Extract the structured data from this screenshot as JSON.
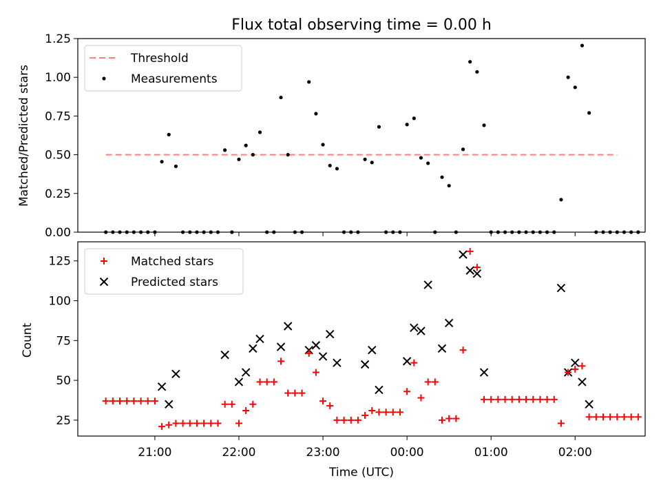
{
  "chart_data": [
    {
      "type": "scatter",
      "title": "Flux total observing time = 0.00 h",
      "xlabel": "",
      "ylabel": "Matched/Predicted stars",
      "ylim": [
        0,
        1.25
      ],
      "yticks": [
        0.0,
        0.25,
        0.5,
        0.75,
        1.0,
        1.25
      ],
      "ytick_labels": [
        "0.00",
        "0.25",
        "0.50",
        "0.75",
        "1.00",
        "1.25"
      ],
      "legend_position": "top-left",
      "threshold": {
        "name": "Threshold",
        "value": 0.5,
        "x_start": "20:25",
        "x_end": "02:30",
        "color": "#ff7f7f"
      },
      "series": [
        {
          "name": "Measurements",
          "color": "#000000",
          "marker": "dot",
          "points": [
            [
              "20:25",
              0
            ],
            [
              "20:30",
              0
            ],
            [
              "20:35",
              0
            ],
            [
              "20:40",
              0
            ],
            [
              "20:45",
              0
            ],
            [
              "20:50",
              0
            ],
            [
              "20:55",
              0
            ],
            [
              "21:00",
              0
            ],
            [
              "21:05",
              0.455
            ],
            [
              "21:10",
              0.63
            ],
            [
              "21:15",
              0.425
            ],
            [
              "21:20",
              0
            ],
            [
              "21:25",
              0
            ],
            [
              "21:30",
              0
            ],
            [
              "21:35",
              0
            ],
            [
              "21:40",
              0
            ],
            [
              "21:45",
              0
            ],
            [
              "21:50",
              0.53
            ],
            [
              "21:55",
              0
            ],
            [
              "22:00",
              0.47
            ],
            [
              "22:05",
              0.56
            ],
            [
              "22:10",
              0.5
            ],
            [
              "22:15",
              0.645
            ],
            [
              "22:20",
              0
            ],
            [
              "22:25",
              0
            ],
            [
              "22:30",
              0.87
            ],
            [
              "22:35",
              0.5
            ],
            [
              "22:40",
              0
            ],
            [
              "22:45",
              0
            ],
            [
              "22:50",
              0.97
            ],
            [
              "22:55",
              0.765
            ],
            [
              "23:00",
              0.565
            ],
            [
              "23:05",
              0.43
            ],
            [
              "23:10",
              0.41
            ],
            [
              "23:15",
              0
            ],
            [
              "23:20",
              0
            ],
            [
              "23:25",
              0
            ],
            [
              "23:30",
              0.47
            ],
            [
              "23:35",
              0.45
            ],
            [
              "23:40",
              0.68
            ],
            [
              "23:45",
              0
            ],
            [
              "23:50",
              0
            ],
            [
              "23:55",
              0
            ],
            [
              "00:00",
              0.695
            ],
            [
              "00:05",
              0.735
            ],
            [
              "00:10",
              0.48
            ],
            [
              "00:15",
              0.445
            ],
            [
              "00:20",
              0
            ],
            [
              "00:25",
              0.355
            ],
            [
              "00:30",
              0.3
            ],
            [
              "00:35",
              0
            ],
            [
              "00:40",
              0.535
            ],
            [
              "00:45",
              1.1
            ],
            [
              "00:50",
              1.035
            ],
            [
              "00:55",
              0.69
            ],
            [
              "01:00",
              0
            ],
            [
              "01:05",
              0
            ],
            [
              "01:10",
              0
            ],
            [
              "01:15",
              0
            ],
            [
              "01:20",
              0
            ],
            [
              "01:25",
              0
            ],
            [
              "01:30",
              0
            ],
            [
              "01:35",
              0
            ],
            [
              "01:40",
              0
            ],
            [
              "01:45",
              0
            ],
            [
              "01:50",
              0.21
            ],
            [
              "01:55",
              1.0
            ],
            [
              "02:00",
              0.935
            ],
            [
              "02:05",
              1.205
            ],
            [
              "02:10",
              0.77
            ],
            [
              "02:15",
              0
            ],
            [
              "02:20",
              0
            ],
            [
              "02:25",
              0
            ],
            [
              "02:30",
              0
            ],
            [
              "02:35",
              0
            ],
            [
              "02:40",
              0
            ],
            [
              "02:45",
              0
            ]
          ]
        }
      ]
    },
    {
      "type": "scatter",
      "title": "",
      "xlabel": "Time (UTC)",
      "ylabel": "Count",
      "ylim": [
        15,
        137
      ],
      "yticks": [
        25,
        50,
        75,
        100,
        125
      ],
      "ytick_labels": [
        "25",
        "50",
        "75",
        "100",
        "125"
      ],
      "xticks": [
        "21:00",
        "22:00",
        "23:00",
        "00:00",
        "01:00",
        "02:00"
      ],
      "xlim": [
        "20:05",
        "02:50"
      ],
      "legend_position": "top-left",
      "series": [
        {
          "name": "Matched stars",
          "color": "#ff0000",
          "marker": "plus",
          "points": [
            [
              "20:25",
              37
            ],
            [
              "20:30",
              37
            ],
            [
              "20:35",
              37
            ],
            [
              "20:40",
              37
            ],
            [
              "20:45",
              37
            ],
            [
              "20:50",
              37
            ],
            [
              "20:55",
              37
            ],
            [
              "21:00",
              37
            ],
            [
              "21:05",
              21
            ],
            [
              "21:10",
              22
            ],
            [
              "21:15",
              23
            ],
            [
              "21:20",
              23
            ],
            [
              "21:25",
              23
            ],
            [
              "21:30",
              23
            ],
            [
              "21:35",
              23
            ],
            [
              "21:40",
              23
            ],
            [
              "21:45",
              23
            ],
            [
              "21:50",
              35
            ],
            [
              "21:55",
              35
            ],
            [
              "22:00",
              23
            ],
            [
              "22:05",
              31
            ],
            [
              "22:10",
              35
            ],
            [
              "22:15",
              49
            ],
            [
              "22:20",
              49
            ],
            [
              "22:25",
              49
            ],
            [
              "22:30",
              62
            ],
            [
              "22:35",
              42
            ],
            [
              "22:40",
              42
            ],
            [
              "22:45",
              42
            ],
            [
              "22:50",
              67
            ],
            [
              "22:55",
              55
            ],
            [
              "23:00",
              37
            ],
            [
              "23:05",
              34
            ],
            [
              "23:10",
              25
            ],
            [
              "23:15",
              25
            ],
            [
              "23:20",
              25
            ],
            [
              "23:25",
              25
            ],
            [
              "23:30",
              28
            ],
            [
              "23:35",
              31
            ],
            [
              "23:40",
              30
            ],
            [
              "23:45",
              30
            ],
            [
              "23:50",
              30
            ],
            [
              "23:55",
              30
            ],
            [
              "00:00",
              43
            ],
            [
              "00:05",
              61
            ],
            [
              "00:10",
              39
            ],
            [
              "00:15",
              49
            ],
            [
              "00:20",
              49
            ],
            [
              "00:25",
              25
            ],
            [
              "00:30",
              26
            ],
            [
              "00:35",
              26
            ],
            [
              "00:40",
              69
            ],
            [
              "00:45",
              131
            ],
            [
              "00:50",
              121
            ],
            [
              "00:55",
              38
            ],
            [
              "01:00",
              38
            ],
            [
              "01:05",
              38
            ],
            [
              "01:10",
              38
            ],
            [
              "01:15",
              38
            ],
            [
              "01:20",
              38
            ],
            [
              "01:25",
              38
            ],
            [
              "01:30",
              38
            ],
            [
              "01:35",
              38
            ],
            [
              "01:40",
              38
            ],
            [
              "01:45",
              38
            ],
            [
              "01:50",
              23
            ],
            [
              "01:55",
              55
            ],
            [
              "02:00",
              57
            ],
            [
              "02:05",
              59
            ],
            [
              "02:10",
              27
            ],
            [
              "02:15",
              27
            ],
            [
              "02:20",
              27
            ],
            [
              "02:25",
              27
            ],
            [
              "02:30",
              27
            ],
            [
              "02:35",
              27
            ],
            [
              "02:40",
              27
            ],
            [
              "02:45",
              27
            ]
          ]
        },
        {
          "name": "Predicted stars",
          "color": "#000000",
          "marker": "x",
          "points": [
            [
              "21:05",
              46
            ],
            [
              "21:10",
              35
            ],
            [
              "21:15",
              54
            ],
            [
              "21:50",
              66
            ],
            [
              "22:00",
              49
            ],
            [
              "22:05",
              55
            ],
            [
              "22:10",
              70
            ],
            [
              "22:15",
              76
            ],
            [
              "22:30",
              71
            ],
            [
              "22:35",
              84
            ],
            [
              "22:50",
              69
            ],
            [
              "22:55",
              72
            ],
            [
              "23:00",
              65
            ],
            [
              "23:05",
              79
            ],
            [
              "23:10",
              61
            ],
            [
              "23:30",
              60
            ],
            [
              "23:35",
              69
            ],
            [
              "23:40",
              44
            ],
            [
              "00:00",
              62
            ],
            [
              "00:05",
              83
            ],
            [
              "00:10",
              81
            ],
            [
              "00:15",
              110
            ],
            [
              "00:25",
              70
            ],
            [
              "00:30",
              86
            ],
            [
              "00:40",
              129
            ],
            [
              "00:45",
              119
            ],
            [
              "00:50",
              117
            ],
            [
              "00:55",
              55
            ],
            [
              "01:50",
              108
            ],
            [
              "01:55",
              55
            ],
            [
              "02:00",
              61
            ],
            [
              "02:05",
              49
            ],
            [
              "02:10",
              35
            ]
          ]
        }
      ]
    }
  ]
}
